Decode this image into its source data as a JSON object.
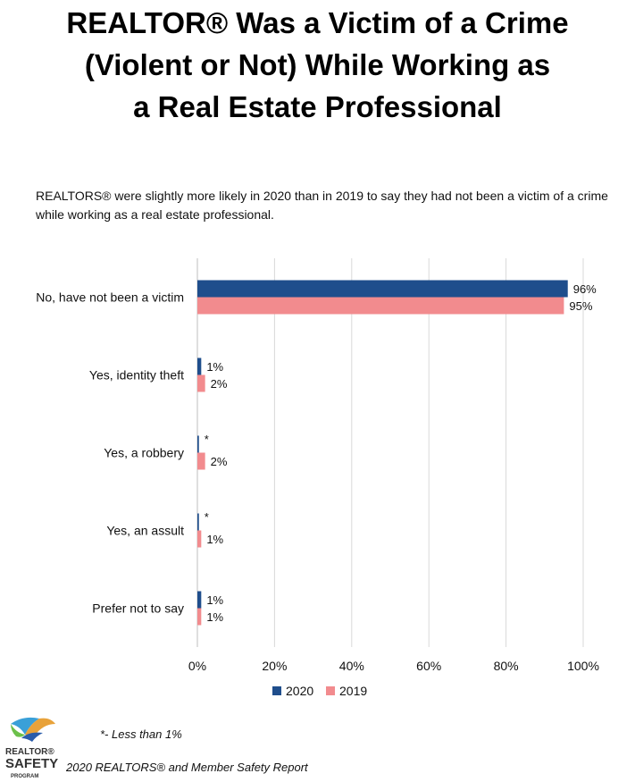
{
  "title_lines": [
    "REALTOR® Was a Victim of a Crime",
    "(Violent or Not) While Working as",
    "a Real Estate Professional"
  ],
  "subtitle": "REALTORS® were slightly more likely in 2020 than in 2019 to say they had not been a victim of a crime while working as a real estate professional.",
  "footnote": "*- Less than 1%",
  "source": "2020 REALTORS® and Member Safety Report",
  "logo": {
    "line1": "REALTOR®",
    "line2": "SAFETY",
    "line3": "PROGRAM"
  },
  "colors": {
    "series_2020": "#1f4e8c",
    "series_2019": "#f28b8e",
    "grid": "#d9d9d9"
  },
  "chart_data": {
    "type": "bar",
    "orientation": "horizontal",
    "categories": [
      "No, have not been a victim",
      "Yes, identity theft",
      "Yes, a robbery",
      "Yes, an assult",
      "Prefer not to say"
    ],
    "series": [
      {
        "name": "2020",
        "values": [
          96,
          1,
          0.4,
          0.4,
          1
        ],
        "labels": [
          "96%",
          "1%",
          "*",
          "*",
          "1%"
        ]
      },
      {
        "name": "2019",
        "values": [
          95,
          2,
          2,
          1,
          1
        ],
        "labels": [
          "95%",
          "2%",
          "2%",
          "1%",
          "1%"
        ]
      }
    ],
    "xlim": [
      0,
      100
    ],
    "xticks": [
      "0%",
      "20%",
      "40%",
      "60%",
      "80%",
      "100%"
    ],
    "grid": true,
    "legend_position": "bottom"
  }
}
